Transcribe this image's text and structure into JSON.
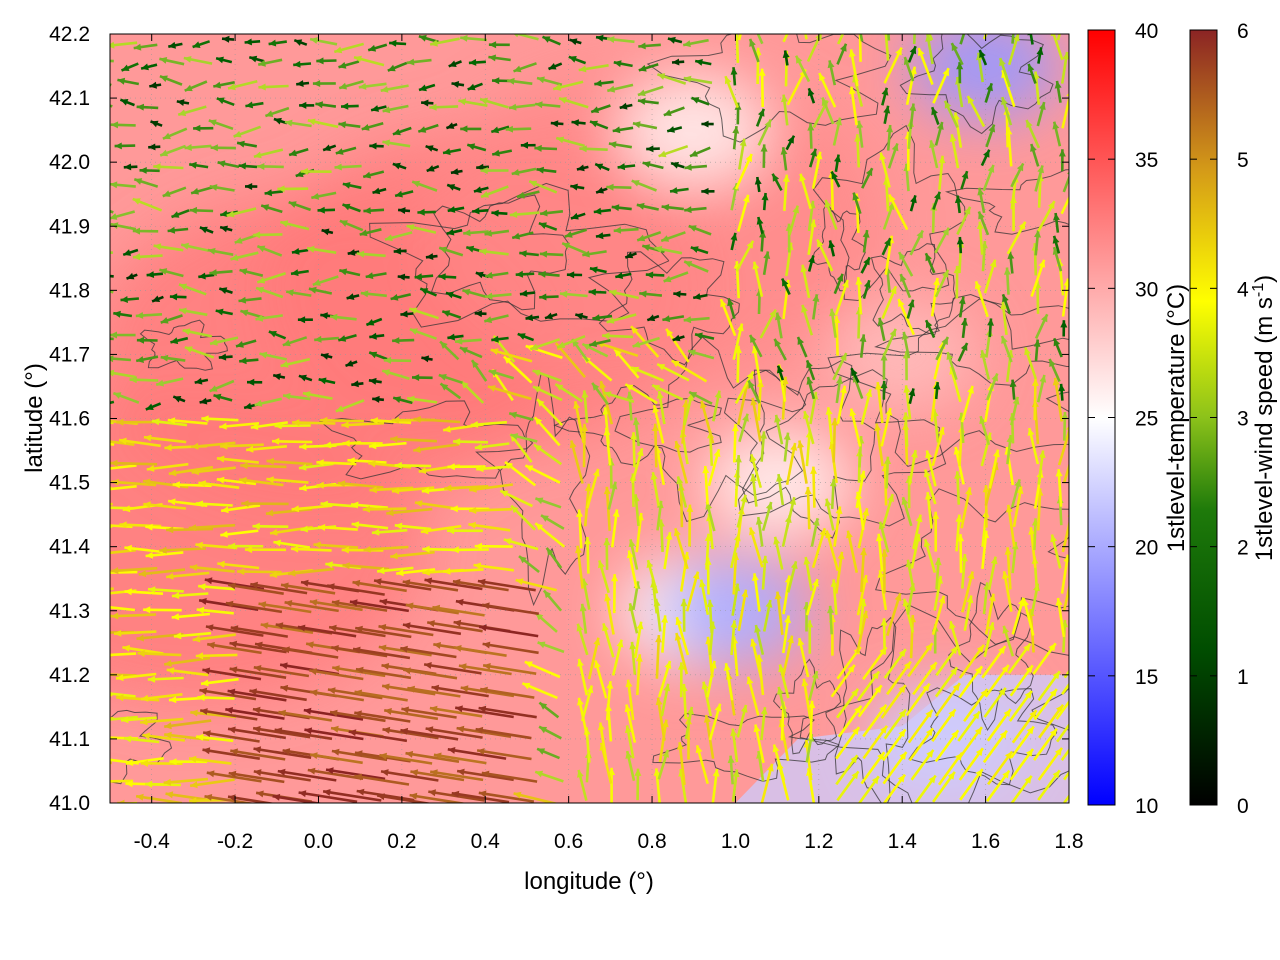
{
  "chart_data": {
    "type": "heatmap",
    "title": "",
    "xlabel": "longitude (°)",
    "ylabel": "latitude (°)",
    "xlim": [
      -0.5,
      1.8
    ],
    "ylim": [
      41.0,
      42.2
    ],
    "xticks": [
      "-0.4",
      "-0.2",
      "0.0",
      "0.2",
      "0.4",
      "0.6",
      "0.8",
      "1.0",
      "1.2",
      "1.4",
      "1.6",
      "1.8"
    ],
    "xtick_values": [
      -0.4,
      -0.2,
      0.0,
      0.2,
      0.4,
      0.6,
      0.8,
      1.0,
      1.2,
      1.4,
      1.6,
      1.8
    ],
    "yticks": [
      "41.0",
      "41.1",
      "41.2",
      "41.3",
      "41.4",
      "41.5",
      "41.6",
      "41.7",
      "41.8",
      "41.9",
      "42.0",
      "42.1",
      "42.2"
    ],
    "ytick_values": [
      41.0,
      41.1,
      41.2,
      41.3,
      41.4,
      41.5,
      41.6,
      41.7,
      41.8,
      41.9,
      42.0,
      42.1,
      42.2
    ],
    "grid": true,
    "temperature_colorbar": {
      "label": "1stlevel-temperature (°C)",
      "range": [
        10,
        40
      ],
      "ticks": [
        "10",
        "15",
        "20",
        "25",
        "30",
        "35",
        "40"
      ],
      "tick_values": [
        10,
        15,
        20,
        25,
        30,
        35,
        40
      ],
      "colors": [
        "#0000ff",
        "#ffffff",
        "#ff0000"
      ]
    },
    "wind_colorbar": {
      "label_main": "1stlevel-wind speed (m s",
      "label_sup": "-1",
      "label_end": ")",
      "range": [
        0,
        6
      ],
      "ticks": [
        "0",
        "1",
        "2",
        "3",
        "4",
        "5",
        "6"
      ],
      "tick_values": [
        0,
        1,
        2,
        3,
        4,
        5,
        6
      ],
      "colors": [
        "#000000",
        "#006400",
        "#9acd32",
        "#ffff00",
        "#daa520",
        "#8b2222"
      ]
    },
    "temperature_field": [
      {
        "lon": -0.3,
        "lat": 41.4,
        "value": 33
      },
      {
        "lon": 0.0,
        "lat": 41.7,
        "value": 33
      },
      {
        "lon": 0.4,
        "lat": 41.8,
        "value": 33
      },
      {
        "lon": 0.8,
        "lat": 41.9,
        "value": 32
      },
      {
        "lon": 0.9,
        "lat": 41.3,
        "value": 25
      },
      {
        "lon": 1.0,
        "lat": 41.3,
        "value": 20
      },
      {
        "lon": 1.1,
        "lat": 41.5,
        "value": 26
      },
      {
        "lon": 1.5,
        "lat": 41.1,
        "value": 22
      },
      {
        "lon": 1.6,
        "lat": 42.15,
        "value": 19
      },
      {
        "lon": 0.9,
        "lat": 42.05,
        "value": 26
      },
      {
        "lon": 1.4,
        "lat": 41.7,
        "value": 29
      }
    ],
    "wind_regimes": [
      {
        "region": "southwest",
        "direction": "westward-northwest",
        "speed": 5.5
      },
      {
        "region": "west",
        "direction": "westward",
        "speed": 4
      },
      {
        "region": "north",
        "direction": "westward",
        "speed": 1.5
      },
      {
        "region": "east",
        "direction": "northward",
        "speed": 3.5
      },
      {
        "region": "southeast",
        "direction": "northeastward",
        "speed": 3.5
      }
    ]
  }
}
